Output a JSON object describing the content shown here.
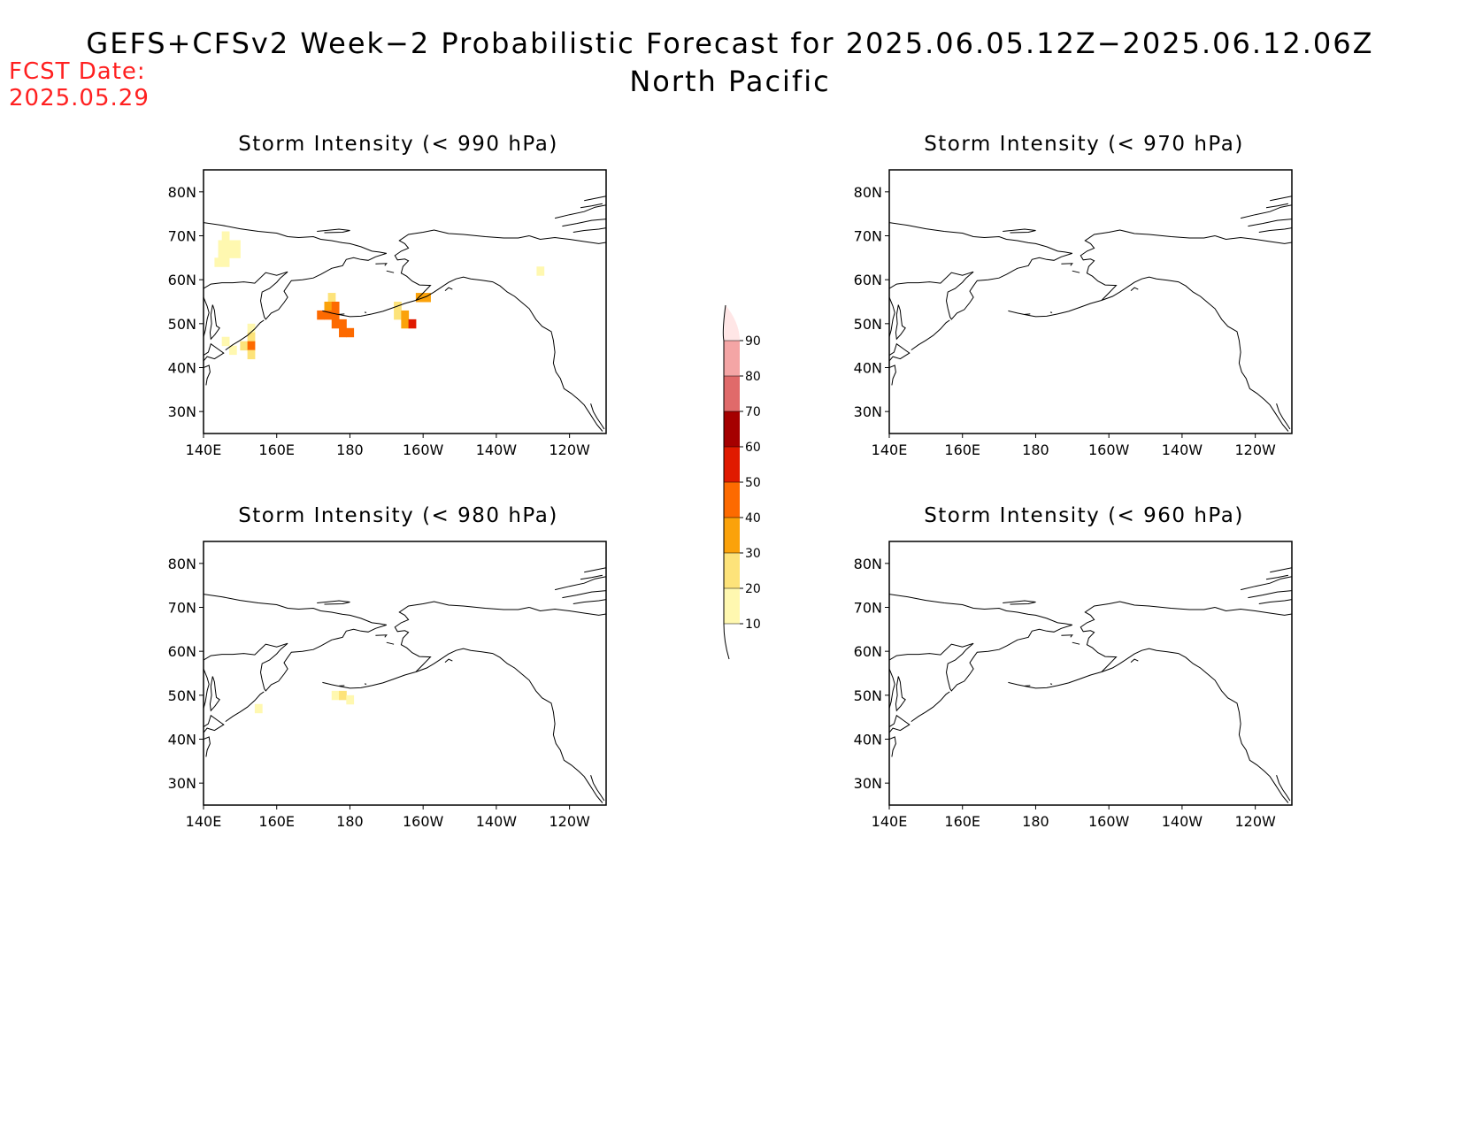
{
  "title": {
    "line1": "GEFS+CFSv2 Week−2 Probabilistic Forecast for 2025.06.05.12Z−2025.06.12.06Z",
    "line2": "North Pacific"
  },
  "forecast_date": {
    "label": "FCST Date:",
    "value": "2025.05.29"
  },
  "panels": [
    {
      "id": "p990",
      "title": "Storm Intensity (< 990 hPa)"
    },
    {
      "id": "p970",
      "title": "Storm Intensity (< 970 hPa)"
    },
    {
      "id": "p980",
      "title": "Storm Intensity (< 980 hPa)"
    },
    {
      "id": "p960",
      "title": "Storm Intensity (< 960 hPa)"
    }
  ],
  "axes": {
    "lat_labels": [
      "80N",
      "70N",
      "60N",
      "50N",
      "40N",
      "30N"
    ],
    "lon_labels": [
      "140E",
      "160E",
      "180",
      "160W",
      "140W",
      "120W"
    ]
  },
  "colorbar": {
    "levels": [
      "10",
      "20",
      "30",
      "40",
      "50",
      "60",
      "70",
      "80",
      "90"
    ],
    "colors": [
      "#fff8b0",
      "#fde37a",
      "#fba20a",
      "#fd6a00",
      "#e01a00",
      "#a50000",
      "#e06a6a",
      "#f4a5a5",
      "#ffe6e6"
    ]
  },
  "map_extent": {
    "lon_min": 140,
    "lon_max": 250,
    "lat_min": 25,
    "lat_max": 85
  },
  "probability_cells": {
    "p990": [
      {
        "lon": 144,
        "lat": 64,
        "p": 10
      },
      {
        "lon": 146,
        "lat": 64,
        "p": 10
      },
      {
        "lon": 145,
        "lat": 66,
        "p": 10
      },
      {
        "lon": 147,
        "lat": 66,
        "p": 10
      },
      {
        "lon": 149,
        "lat": 66,
        "p": 10
      },
      {
        "lon": 145,
        "lat": 68,
        "p": 10
      },
      {
        "lon": 147,
        "lat": 68,
        "p": 10
      },
      {
        "lon": 149,
        "lat": 68,
        "p": 10
      },
      {
        "lon": 146,
        "lat": 70,
        "p": 10
      },
      {
        "lon": 146,
        "lat": 46,
        "p": 10
      },
      {
        "lon": 148,
        "lat": 44,
        "p": 10
      },
      {
        "lon": 153,
        "lat": 49,
        "p": 10
      },
      {
        "lon": 153,
        "lat": 47,
        "p": 20
      },
      {
        "lon": 151,
        "lat": 45,
        "p": 20
      },
      {
        "lon": 153,
        "lat": 45,
        "p": 40
      },
      {
        "lon": 153,
        "lat": 43,
        "p": 20
      },
      {
        "lon": 175,
        "lat": 56,
        "p": 20
      },
      {
        "lon": 174,
        "lat": 54,
        "p": 30
      },
      {
        "lon": 176,
        "lat": 54,
        "p": 40
      },
      {
        "lon": 172,
        "lat": 52,
        "p": 40
      },
      {
        "lon": 174,
        "lat": 52,
        "p": 40
      },
      {
        "lon": 176,
        "lat": 52,
        "p": 40
      },
      {
        "lon": 176,
        "lat": 50,
        "p": 40
      },
      {
        "lon": 178,
        "lat": 50,
        "p": 40
      },
      {
        "lon": 178,
        "lat": 48,
        "p": 40
      },
      {
        "lon": 180,
        "lat": 48,
        "p": 40
      },
      {
        "lon": 193,
        "lat": 54,
        "p": 20
      },
      {
        "lon": 193,
        "lat": 52,
        "p": 20
      },
      {
        "lon": 195,
        "lat": 52,
        "p": 30
      },
      {
        "lon": 195,
        "lat": 50,
        "p": 30
      },
      {
        "lon": 197,
        "lat": 50,
        "p": 50
      },
      {
        "lon": 199,
        "lat": 56,
        "p": 30
      },
      {
        "lon": 201,
        "lat": 56,
        "p": 30
      },
      {
        "lon": 232,
        "lat": 62,
        "p": 10
      }
    ],
    "p970": [],
    "p980": [
      {
        "lon": 155,
        "lat": 47,
        "p": 10
      },
      {
        "lon": 176,
        "lat": 50,
        "p": 10
      },
      {
        "lon": 178,
        "lat": 50,
        "p": 20
      },
      {
        "lon": 180,
        "lat": 49,
        "p": 10
      }
    ],
    "p960": []
  }
}
